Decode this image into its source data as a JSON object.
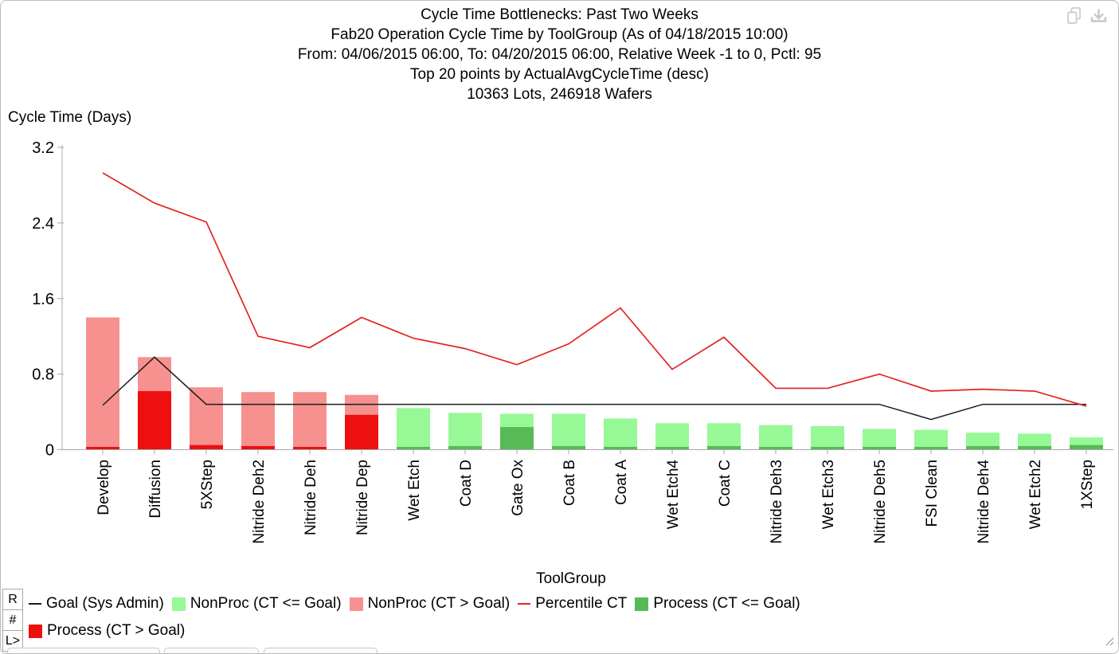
{
  "toolbar": {
    "icons": [
      "copy",
      "download"
    ]
  },
  "side_buttons": [
    "R",
    "#",
    "L>"
  ],
  "chart_data": {
    "type": "bar",
    "stacked": true,
    "grid": false,
    "legend_position": "bottom",
    "title_lines": [
      "Cycle Time Bottlenecks: Past Two Weeks",
      "Fab20 Operation Cycle Time by ToolGroup (As of 04/18/2015 10:00)",
      "From: 04/06/2015 06:00, To: 04/20/2015 06:00, Relative Week -1 to 0, Pctl: 95",
      "Top 20 points by ActualAvgCycleTime (desc)",
      "10363 Lots, 246918 Wafers"
    ],
    "ylabel": "Cycle Time (Days)",
    "xlabel": "ToolGroup",
    "ylim": [
      0,
      3.2
    ],
    "yticks": [
      0,
      0.8,
      1.6,
      2.4,
      3.2
    ],
    "categories": [
      "Develop",
      "Diffusion",
      "5XStep",
      "Nitride Deh2",
      "Nitride Deh",
      "Nitride Dep",
      "Wet Etch",
      "Coat D",
      "Gate Ox",
      "Coat B",
      "Coat A",
      "Wet Etch4",
      "Coat C",
      "Nitride Deh3",
      "Wet Etch3",
      "Nitride Deh5",
      "FSI Clean",
      "Nitride Deh4",
      "Wet Etch2",
      "1XStep"
    ],
    "series": [
      {
        "name": "Process (CT > Goal)",
        "render": "bar",
        "color": "#ee0f0f",
        "values": [
          0.03,
          0.62,
          0.05,
          0.04,
          0.03,
          0.37,
          0,
          0,
          0,
          0,
          0,
          0,
          0,
          0,
          0,
          0,
          0,
          0,
          0,
          0
        ]
      },
      {
        "name": "NonProc (CT > Goal)",
        "render": "bar",
        "color": "#f6918f",
        "values": [
          1.37,
          0.36,
          0.61,
          0.57,
          0.58,
          0.21,
          0,
          0,
          0,
          0,
          0,
          0,
          0,
          0,
          0,
          0,
          0,
          0,
          0,
          0
        ]
      },
      {
        "name": "Process (CT <= Goal)",
        "render": "bar",
        "color": "#57ba57",
        "values": [
          0,
          0,
          0,
          0,
          0,
          0,
          0.03,
          0.04,
          0.24,
          0.04,
          0.03,
          0.03,
          0.04,
          0.03,
          0.03,
          0.03,
          0.03,
          0.04,
          0.04,
          0.05
        ]
      },
      {
        "name": "NonProc (CT <= Goal)",
        "render": "bar",
        "color": "#96f996",
        "values": [
          0,
          0,
          0,
          0,
          0,
          0,
          0.41,
          0.35,
          0.14,
          0.34,
          0.3,
          0.25,
          0.24,
          0.23,
          0.22,
          0.19,
          0.18,
          0.14,
          0.13,
          0.08
        ]
      },
      {
        "name": "Goal (Sys Admin)",
        "render": "line",
        "color": "#1c1c1c",
        "width": 1.5,
        "values": [
          0.47,
          0.98,
          0.48,
          0.48,
          0.48,
          0.48,
          0.48,
          0.48,
          0.48,
          0.48,
          0.48,
          0.48,
          0.48,
          0.48,
          0.48,
          0.48,
          0.32,
          0.48,
          0.48,
          0.48
        ]
      },
      {
        "name": "Percentile CT",
        "render": "line",
        "color": "#e42222",
        "width": 1.7,
        "values": [
          2.93,
          2.61,
          2.41,
          1.2,
          1.08,
          1.4,
          1.18,
          1.07,
          0.9,
          1.12,
          1.5,
          0.85,
          1.19,
          0.65,
          0.65,
          0.8,
          0.62,
          0.64,
          0.62,
          0.46
        ]
      }
    ]
  },
  "legend": {
    "rows": [
      [
        {
          "swatch": "line",
          "color": "#1c1c1c",
          "label": "Goal (Sys Admin)"
        },
        {
          "swatch": "square",
          "color": "#96f996",
          "label": "NonProc (CT <= Goal)"
        },
        {
          "swatch": "square",
          "color": "#f6918f",
          "label": "NonProc (CT > Goal)"
        },
        {
          "swatch": "line",
          "color": "#e42222",
          "label": "Percentile CT"
        },
        {
          "swatch": "square",
          "color": "#57ba57",
          "label": "Process (CT <= Goal)"
        }
      ],
      [
        {
          "swatch": "square",
          "color": "#ee0f0f",
          "label": "Process (CT > Goal)"
        }
      ]
    ]
  }
}
